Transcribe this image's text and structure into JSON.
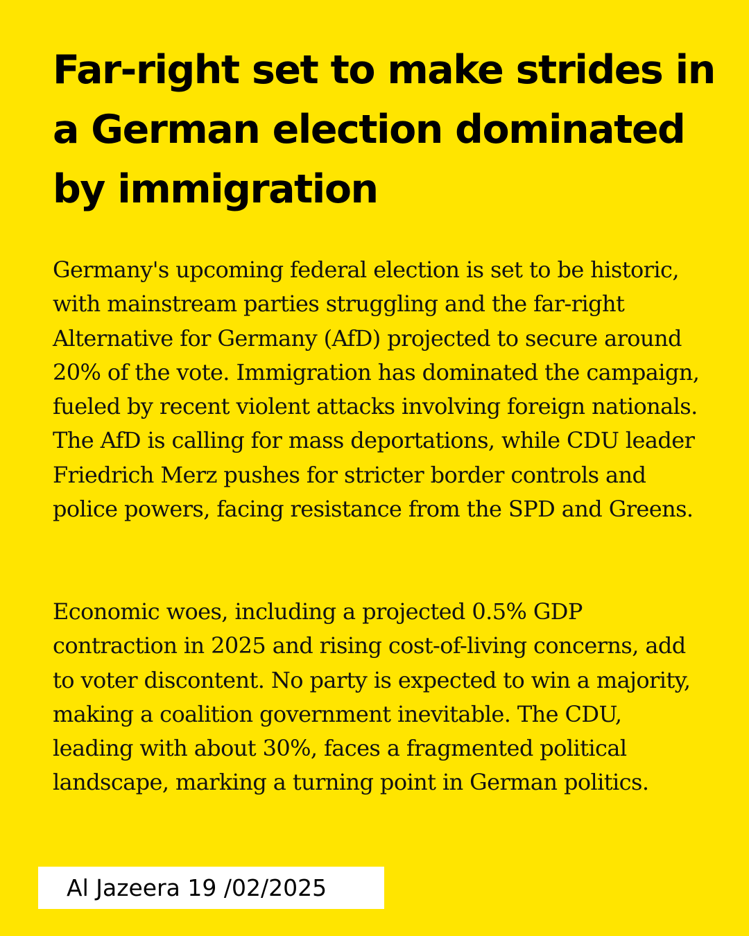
{
  "article": {
    "headline": "Far-right set to make strides in a German election dominated by immigration",
    "paragraphs": [
      "Germany's upcoming federal election is set to be historic, with mainstream parties struggling and the far-right Alternative for Germany (AfD) projected to secure around 20% of the vote. Immigration has dominated the campaign, fueled by recent violent attacks involving foreign nationals. The AfD is calling for mass deportations, while CDU leader Friedrich Merz pushes for stricter border controls and police powers, facing resistance from the SPD and Greens.",
      "Economic woes, including a projected 0.5% GDP contraction in 2025 and rising cost-of-living concerns, add to voter discontent. No party is expected to win a majority, making a coalition government inevitable. The CDU, leading with about 30%, faces a fragmented political landscape, marking a turning point in German politics."
    ],
    "source": "Al Jazeera 19 /02/2025"
  },
  "colors": {
    "background": "#FFE500",
    "text": "#000000",
    "source_box": "#FFFFFF"
  }
}
